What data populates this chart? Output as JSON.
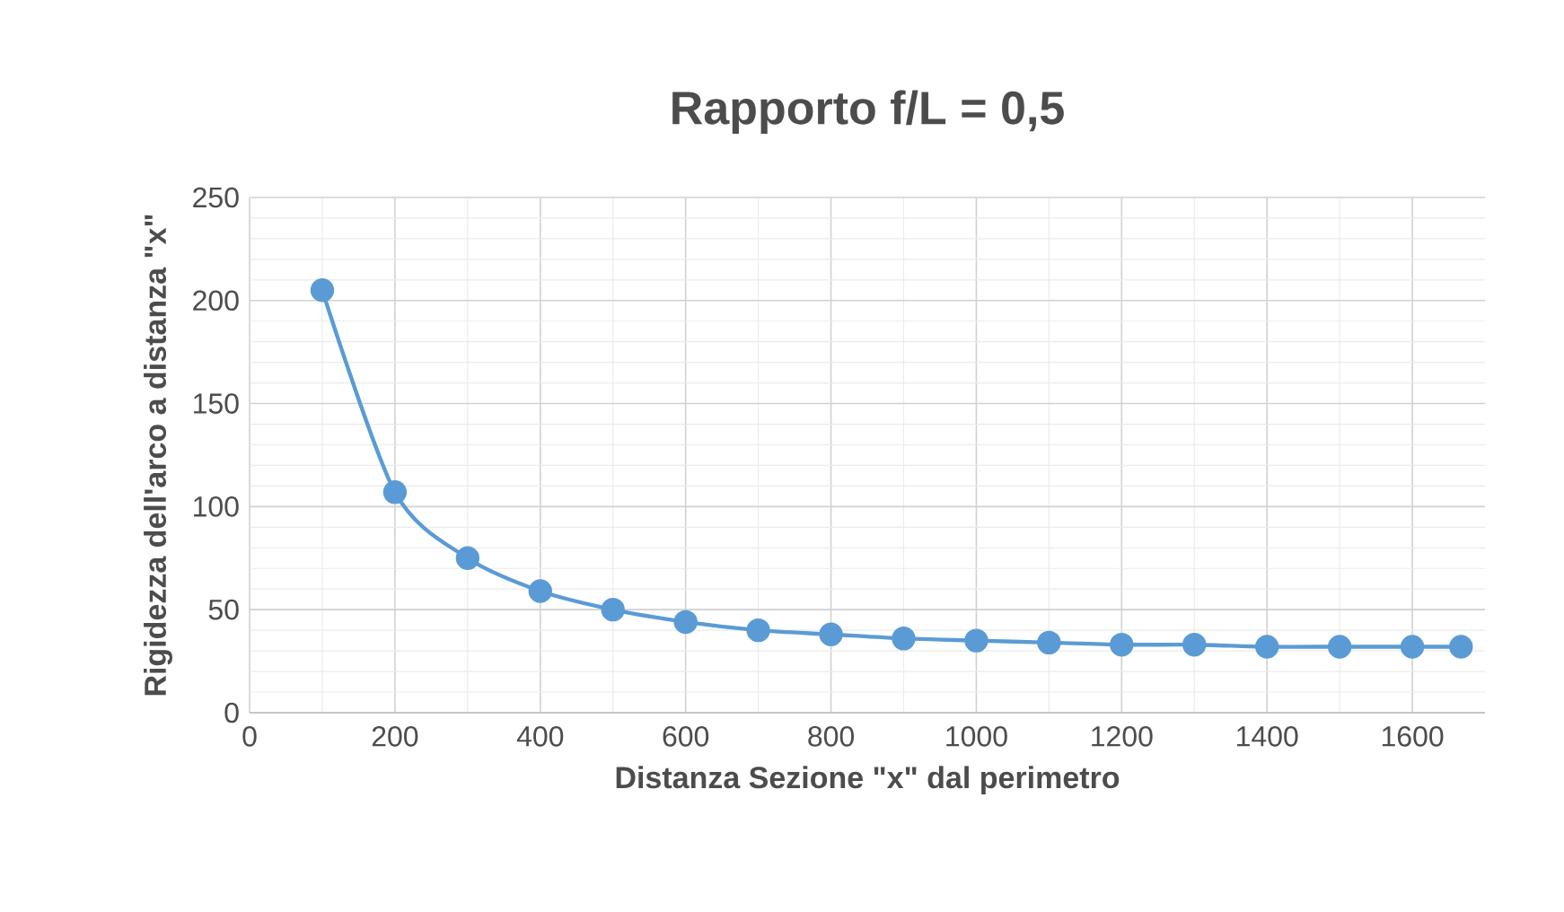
{
  "chart_data": {
    "type": "line",
    "title": "Rapporto f/L = 0,5",
    "xlabel": "Distanza Sezione \"x\" dal perimetro",
    "ylabel": "Rigidezza dell'arco a distanza \"x\"",
    "x": [
      100,
      200,
      300,
      400,
      500,
      600,
      700,
      800,
      900,
      1000,
      1100,
      1200,
      1300,
      1400,
      1500,
      1600,
      1667
    ],
    "series": [
      {
        "color": "#5b9bd5",
        "values": [
          205,
          107,
          75,
          59,
          50,
          44,
          40,
          38,
          36,
          35,
          34,
          33,
          33,
          32,
          32,
          32,
          32
        ]
      }
    ],
    "xlim": [
      0,
      1700
    ],
    "xticks": [
      0,
      200,
      400,
      600,
      800,
      1000,
      1200,
      1400,
      1600
    ],
    "ylim": [
      0,
      250
    ],
    "yticks": [
      0,
      50,
      100,
      150,
      200,
      250
    ],
    "grid": true,
    "marker": "circle",
    "line_style": "solid"
  }
}
